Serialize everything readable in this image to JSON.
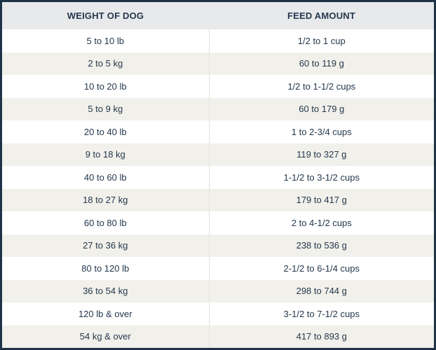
{
  "table": {
    "headers": [
      "WEIGHT OF DOG",
      "FEED AMOUNT"
    ],
    "rows": [
      [
        "5 to 10 lb",
        "1/2 to 1 cup"
      ],
      [
        "2 to 5 kg",
        "60 to 119 g"
      ],
      [
        "10 to 20 lb",
        "1/2 to 1-1/2 cups"
      ],
      [
        "5 to 9 kg",
        "60 to 179 g"
      ],
      [
        "20 to 40 lb",
        "1 to 2-3/4 cups"
      ],
      [
        "9 to 18 kg",
        "119 to 327 g"
      ],
      [
        "40 to 60 lb",
        "1-1/2 to 3-1/2 cups"
      ],
      [
        "18 to 27 kg",
        "179 to 417 g"
      ],
      [
        "60 to 80 lb",
        "2 to 4-1/2 cups"
      ],
      [
        "27 to 36 kg",
        "238 to 536 g"
      ],
      [
        "80 to 120 lb",
        "2-1/2 to 6-1/4 cups"
      ],
      [
        "36 to 54 kg",
        "298 to 744 g"
      ],
      [
        "120 lb & over",
        "3-1/2 to 7-1/2 cups"
      ],
      [
        "54 kg & over",
        "417 to 893 g"
      ]
    ]
  },
  "colors": {
    "border": "#1f3348",
    "header_bg": "#e8e9eb",
    "stripe_bg": "#f1f0ea",
    "text": "#25384d"
  }
}
